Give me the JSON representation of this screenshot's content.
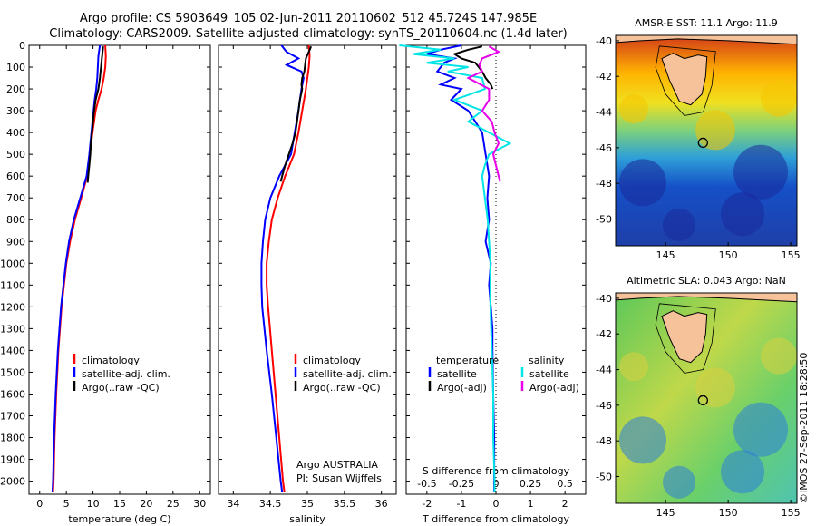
{
  "titles": {
    "line1": "Argo profile: CS 5903649_105 02-Jun-2011 20110602_512 45.724S 147.985E",
    "line2": "Climatology: CARS2009. Satellite-adjusted climatology: synTS_20110604.nc (1.4d later)"
  },
  "colors": {
    "climatology": "#ff0000",
    "satellite": "#0000ff",
    "argo": "#000000",
    "salinity_satellite": "#00e5e5",
    "salinity_argo": "#e800e8"
  },
  "depth_axis": {
    "ticks": [
      0,
      100,
      200,
      300,
      400,
      500,
      600,
      700,
      800,
      900,
      1000,
      1100,
      1200,
      1300,
      1400,
      1500,
      1600,
      1700,
      1800,
      1900,
      2000
    ],
    "lim": [
      0,
      2060
    ]
  },
  "chart_data": [
    {
      "type": "line",
      "id": "temperature",
      "xlabel": "temperature (deg C)",
      "xlim": [
        -2,
        32
      ],
      "xticks": [
        0,
        5,
        10,
        15,
        20,
        25,
        30
      ],
      "ylim": [
        0,
        2060
      ],
      "legend": [
        "climatology",
        "satellite-adj. clim.",
        "Argo(..raw -QC)"
      ],
      "series": [
        {
          "name": "climatology",
          "color": "#ff0000",
          "depth": [
            0,
            50,
            100,
            150,
            200,
            250,
            300,
            400,
            500,
            600,
            700,
            800,
            900,
            1000,
            1200,
            1400,
            1600,
            1800,
            2000,
            2050
          ],
          "values": [
            12.3,
            12.4,
            12.3,
            12.0,
            11.6,
            11.0,
            10.5,
            9.9,
            9.4,
            8.9,
            7.8,
            6.6,
            5.7,
            5.0,
            4.1,
            3.5,
            3.1,
            2.8,
            2.6,
            2.5
          ]
        },
        {
          "name": "satellite-adj. clim.",
          "color": "#0000ff",
          "depth": [
            0,
            50,
            100,
            150,
            200,
            250,
            300,
            400,
            500,
            600,
            700,
            800,
            900,
            1000,
            1200,
            1400,
            1600,
            1800,
            2000,
            2050
          ],
          "values": [
            11.3,
            11.0,
            10.9,
            10.8,
            10.6,
            10.3,
            10.1,
            9.7,
            9.3,
            8.8,
            7.6,
            6.4,
            5.5,
            4.9,
            4.0,
            3.4,
            3.0,
            2.7,
            2.5,
            2.4
          ]
        },
        {
          "name": "Argo(..raw -QC)",
          "color": "#000000",
          "depth": [
            5,
            50,
            100,
            150,
            200,
            250,
            300,
            350,
            400,
            450,
            500,
            550,
            600,
            630
          ],
          "values": [
            11.9,
            11.7,
            11.5,
            11.3,
            11.0,
            10.5,
            10.2,
            10.0,
            9.8,
            9.6,
            9.5,
            9.3,
            9.1,
            9.0
          ]
        }
      ]
    },
    {
      "type": "line",
      "id": "salinity",
      "xlabel": "salinity",
      "xlim": [
        33.8,
        36.2
      ],
      "xticks": [
        34,
        34.5,
        35,
        35.5,
        36
      ],
      "ylim": [
        0,
        2060
      ],
      "legend": [
        "climatology",
        "satellite-adj. clim.",
        "Argo(..raw -QC)"
      ],
      "annotation": [
        "Argo AUSTRALIA",
        "PI: Susan Wijffels"
      ],
      "series": [
        {
          "name": "climatology",
          "color": "#ff0000",
          "depth": [
            0,
            50,
            100,
            150,
            200,
            300,
            400,
            500,
            600,
            700,
            800,
            900,
            1000,
            1100,
            1200,
            1400,
            1600,
            1800,
            2000,
            2050
          ],
          "values": [
            35.02,
            35.03,
            35.02,
            35.0,
            34.98,
            34.93,
            34.88,
            34.82,
            34.7,
            34.6,
            34.52,
            34.48,
            34.45,
            34.45,
            34.47,
            34.52,
            34.57,
            34.62,
            34.67,
            34.69
          ]
        },
        {
          "name": "satellite-adj. clim.",
          "color": "#0000ff",
          "depth": [
            0,
            30,
            60,
            90,
            120,
            150,
            200,
            250,
            300,
            400,
            500,
            600,
            700,
            800,
            900,
            1000,
            1100,
            1200,
            1400,
            1600,
            1800,
            2000,
            2050
          ],
          "values": [
            34.65,
            34.72,
            34.88,
            34.72,
            34.92,
            34.95,
            34.92,
            34.9,
            34.88,
            34.83,
            34.78,
            34.62,
            34.5,
            34.43,
            34.4,
            34.38,
            34.38,
            34.39,
            34.45,
            34.52,
            34.58,
            34.64,
            34.66
          ]
        },
        {
          "name": "Argo(..raw -QC)",
          "color": "#000000",
          "depth": [
            5,
            30,
            60,
            90,
            120,
            150,
            180,
            200,
            250,
            300,
            350,
            400,
            450,
            500,
            550,
            600,
            625
          ],
          "values": [
            35.05,
            35.02,
            34.98,
            34.97,
            34.96,
            34.93,
            34.92,
            34.93,
            34.9,
            34.88,
            34.86,
            34.84,
            34.8,
            34.75,
            34.7,
            34.66,
            34.64
          ]
        }
      ]
    },
    {
      "type": "line",
      "id": "difference",
      "xlabel": "T difference from climatology",
      "xlabel_top": "S difference from climatology",
      "xlim": [
        -2.6,
        2.6
      ],
      "xticks": [
        -2,
        -1,
        0,
        1,
        2
      ],
      "sticks": [
        -0.5,
        -0.25,
        0,
        0.25,
        0.5
      ],
      "legend": {
        "temperature_heading": "temperature",
        "salinity_heading": "salinity",
        "items": [
          "satellite",
          "Argo(-adj)",
          "satellite",
          "Argo(-adj)"
        ]
      },
      "series": [
        {
          "name": "temperature satellite",
          "color": "#0000ff",
          "depth": [
            0,
            20,
            40,
            60,
            80,
            100,
            120,
            150,
            180,
            200,
            250,
            300,
            350,
            400,
            500,
            600,
            700,
            800,
            900,
            1000,
            1100,
            1200,
            1300,
            1400,
            1600,
            1800,
            2000,
            2050
          ],
          "values": [
            -1.0,
            -1.6,
            -2.0,
            -1.2,
            -1.5,
            -1.6,
            -1.7,
            -1.2,
            -1.6,
            -1.0,
            -1.3,
            -0.8,
            -0.6,
            -0.4,
            -0.3,
            -0.2,
            -0.25,
            -0.2,
            -0.3,
            -0.15,
            -0.2,
            -0.15,
            -0.1,
            -0.1,
            -0.08,
            -0.05,
            -0.05,
            -0.05
          ]
        },
        {
          "name": "temperature Argo(-adj)",
          "color": "#000000",
          "depth": [
            5,
            20,
            40,
            60,
            80,
            100,
            120,
            150,
            180,
            200
          ],
          "values": [
            -0.4,
            -0.8,
            -1.2,
            -1.0,
            -0.6,
            -0.5,
            -0.4,
            -0.3,
            -0.15,
            -0.1
          ]
        },
        {
          "name": "salinity satellite",
          "color": "#00e5e5",
          "depth": [
            0,
            20,
            40,
            60,
            80,
            100,
            120,
            150,
            200,
            250,
            300,
            350,
            400,
            450,
            500,
            550,
            600,
            700,
            800,
            900,
            1000,
            1200,
            1400,
            1600,
            1800,
            2000,
            2050
          ],
          "values": [
            -0.7,
            -0.4,
            -0.6,
            -0.3,
            -0.5,
            -0.2,
            -0.35,
            -0.1,
            -0.08,
            -0.3,
            -0.1,
            -0.2,
            -0.05,
            0.1,
            -0.05,
            -0.08,
            -0.1,
            -0.08,
            -0.06,
            -0.05,
            -0.04,
            -0.04,
            -0.03,
            -0.02,
            -0.02,
            -0.01,
            -0.01
          ]
        },
        {
          "name": "salinity Argo(-adj)",
          "color": "#e800e8",
          "depth": [
            5,
            30,
            60,
            90,
            120,
            150,
            200,
            250,
            300,
            350,
            400,
            450,
            500,
            550,
            600,
            625
          ],
          "values": [
            -0.05,
            0.02,
            -0.1,
            -0.12,
            -0.1,
            -0.2,
            -0.05,
            -0.05,
            -0.1,
            -0.03,
            -0.01,
            0.02,
            -0.02,
            0.0,
            0.02,
            0.03
          ]
        }
      ]
    },
    {
      "type": "heatmap",
      "id": "sst-map",
      "title": "AMSR-E SST: 11.1 Argo: 11.9",
      "xticks": [
        145,
        150,
        155
      ],
      "yticks": [
        -40,
        -42,
        -44,
        -46,
        -48,
        -50
      ],
      "xlim": [
        141,
        155.5
      ],
      "ylim": [
        -51.5,
        -39.7
      ],
      "marker": {
        "lon": 147.985,
        "lat": -45.724
      }
    },
    {
      "type": "heatmap",
      "id": "sla-map",
      "title": "Altimetric SLA: 0.043 Argo: NaN",
      "xticks": [
        145,
        150,
        155
      ],
      "yticks": [
        -40,
        -42,
        -44,
        -46,
        -48,
        -50
      ],
      "xlim": [
        141,
        155.5
      ],
      "ylim": [
        -51.5,
        -39.7
      ],
      "marker": {
        "lon": 147.985,
        "lat": -45.724
      }
    }
  ],
  "credit": "©IMOS 27-Sep-2011 18:28:50"
}
